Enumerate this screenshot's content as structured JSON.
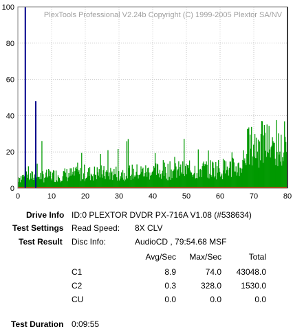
{
  "chart_data": {
    "type": "bar",
    "title": "PlexTools Professional V2.24b Copyright (C) 1999-2005 Plextor SA/NV",
    "xlim": [
      0,
      80
    ],
    "ylim": [
      0,
      100
    ],
    "xticks": [
      "0",
      "10",
      "20",
      "30",
      "40",
      "50",
      "60",
      "70",
      "80"
    ],
    "yticks": [
      "0",
      "20",
      "40",
      "60",
      "80",
      "100"
    ],
    "grid": true,
    "series": [
      {
        "color": "#009900",
        "note_legend": "C1"
      }
    ],
    "markers": [
      {
        "x": 2.2,
        "y": 100,
        "color": "#00008b"
      },
      {
        "x": 5.3,
        "y": 48,
        "color": "#00008b"
      },
      {
        "x": 80,
        "y": 100,
        "color": "#000000"
      }
    ]
  },
  "labels": {
    "drive_info": "Drive Info",
    "test_settings": "Test Settings",
    "test_result": "Test Result",
    "test_duration": "Test Duration"
  },
  "values": {
    "drive": "ID:0 PLEXTOR DVDR PX-716A V1.08 (#538634)",
    "read_speed_label": "Read Speed:",
    "read_speed": "8X CLV",
    "disc_info_label": "Disc Info:",
    "disc_info": "AudioCD , 79:54.68 MSF",
    "duration": "0:09:55"
  },
  "table": {
    "headers": [
      "Avg/Sec",
      "Max/Sec",
      "Total"
    ],
    "rows": [
      {
        "name": "C1",
        "avg": "8.9",
        "max": "74.0",
        "total": "43048.0"
      },
      {
        "name": "C2",
        "avg": "0.3",
        "max": "328.0",
        "total": "1530.0"
      },
      {
        "name": "CU",
        "avg": "0.0",
        "max": "0.0",
        "total": "0.0"
      }
    ]
  }
}
